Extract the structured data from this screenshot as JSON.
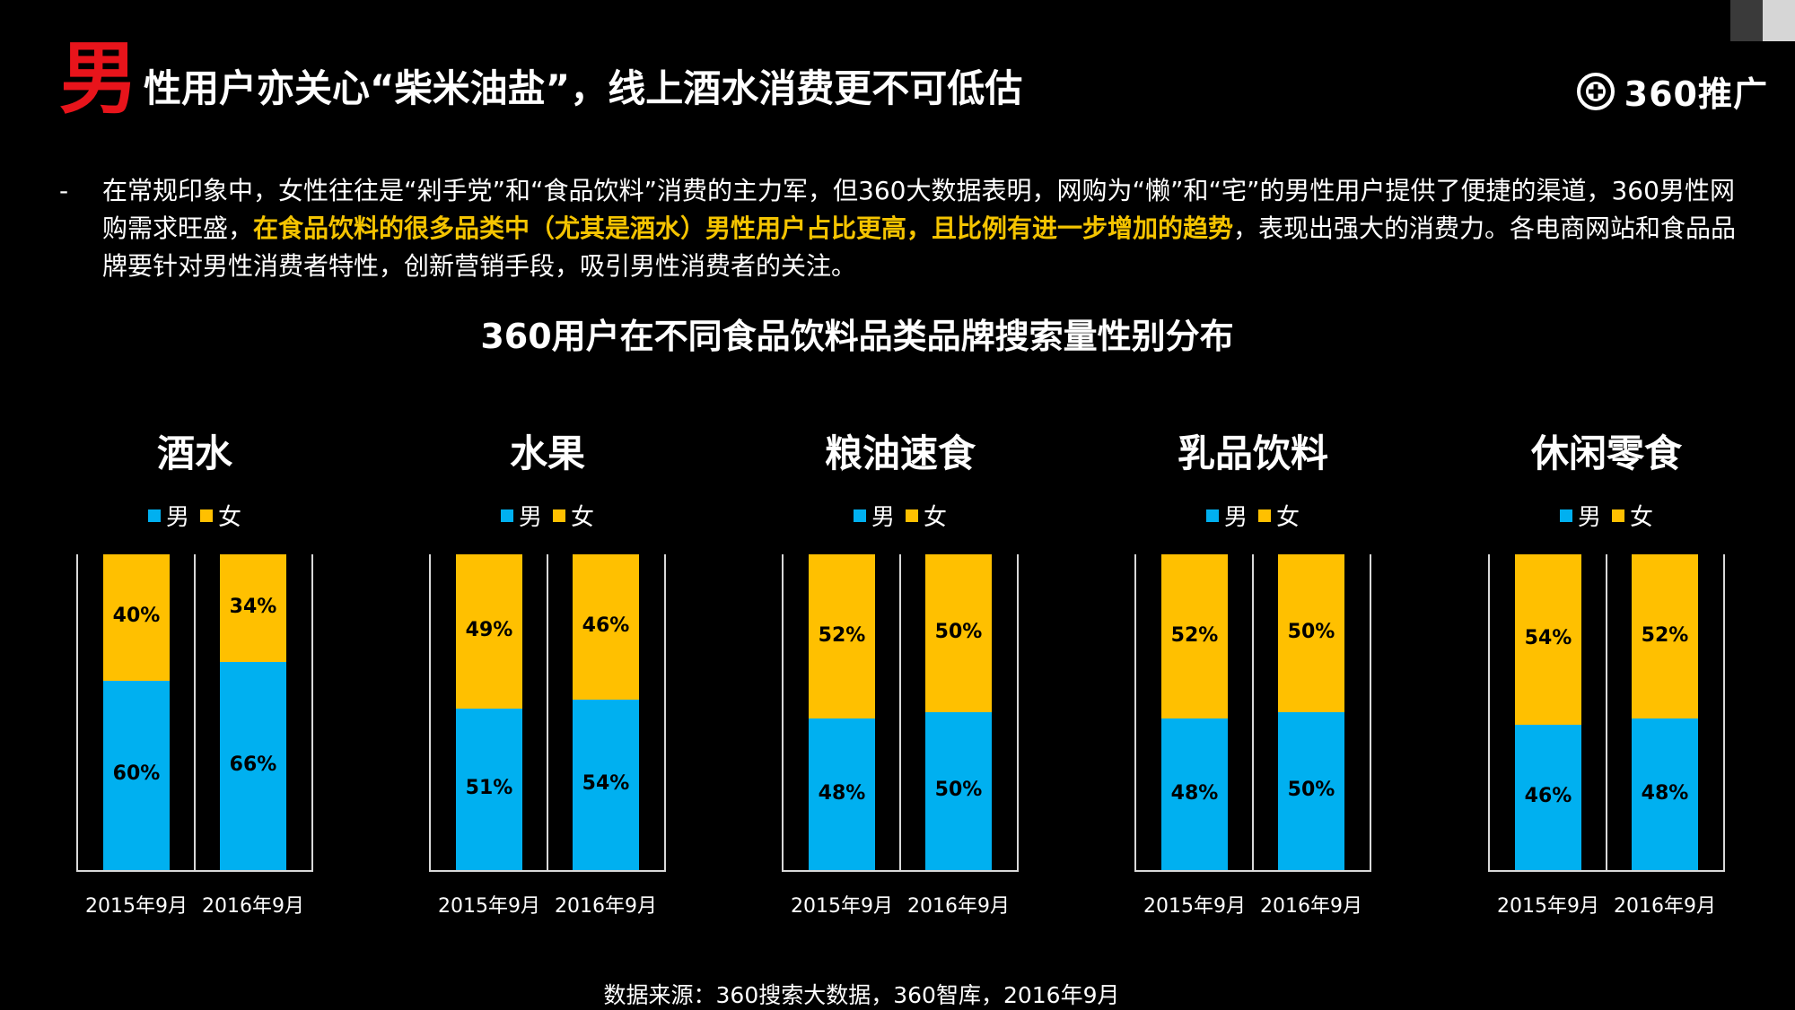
{
  "page": {
    "title_first_char": "男",
    "title_rest": "性用户亦关心“柴米油盐”，线上酒水消费更不可低估",
    "logo_text": "360推广",
    "intro": {
      "dash": "-",
      "text_before": "在常规印象中，女性往往是“剁手党”和“食品饮料”消费的主力军，但360大数据表明，网购为“懒”和“宅”的男性用户提供了便捷的渠道，360男性网购需求旺盛，",
      "highlight": "在食品饮料的很多品类中（尤其是酒水）男性用户占比更高，且比例有进一步增加的趋势",
      "text_after": "，表现出强大的消费力。各电商网站和食品品牌要针对男性消费者特性，创新营销手段，吸引男性消费者的关注。"
    },
    "chart_title": "360用户在不同食品饮料品类品牌搜索量性别分布",
    "source": "数据来源：360搜索大数据，360智库，2016年9月"
  },
  "colors": {
    "male": "#00b0f0",
    "female": "#ffc000",
    "title_accent": "#e8141b",
    "highlight": "#f5c400"
  },
  "chart_data": [
    {
      "type": "bar",
      "stacked": true,
      "title": "酒水",
      "categories": [
        "2015年9月",
        "2016年9月"
      ],
      "series": [
        {
          "name": "男",
          "values": [
            60,
            66
          ]
        },
        {
          "name": "女",
          "values": [
            40,
            34
          ]
        }
      ],
      "ylim": [
        0,
        100
      ]
    },
    {
      "type": "bar",
      "stacked": true,
      "title": "水果",
      "categories": [
        "2015年9月",
        "2016年9月"
      ],
      "series": [
        {
          "name": "男",
          "values": [
            51,
            54
          ]
        },
        {
          "name": "女",
          "values": [
            49,
            46
          ]
        }
      ],
      "ylim": [
        0,
        100
      ]
    },
    {
      "type": "bar",
      "stacked": true,
      "title": "粮油速食",
      "categories": [
        "2015年9月",
        "2016年9月"
      ],
      "series": [
        {
          "name": "男",
          "values": [
            48,
            50
          ]
        },
        {
          "name": "女",
          "values": [
            52,
            50
          ]
        }
      ],
      "ylim": [
        0,
        100
      ]
    },
    {
      "type": "bar",
      "stacked": true,
      "title": "乳品饮料",
      "categories": [
        "2015年9月",
        "2016年9月"
      ],
      "series": [
        {
          "name": "男",
          "values": [
            48,
            50
          ]
        },
        {
          "name": "女",
          "values": [
            52,
            50
          ]
        }
      ],
      "ylim": [
        0,
        100
      ]
    },
    {
      "type": "bar",
      "stacked": true,
      "title": "休闲零食",
      "categories": [
        "2015年9月",
        "2016年9月"
      ],
      "series": [
        {
          "name": "男",
          "values": [
            46,
            48
          ]
        },
        {
          "name": "女",
          "values": [
            54,
            52
          ]
        }
      ],
      "ylim": [
        0,
        100
      ]
    }
  ]
}
